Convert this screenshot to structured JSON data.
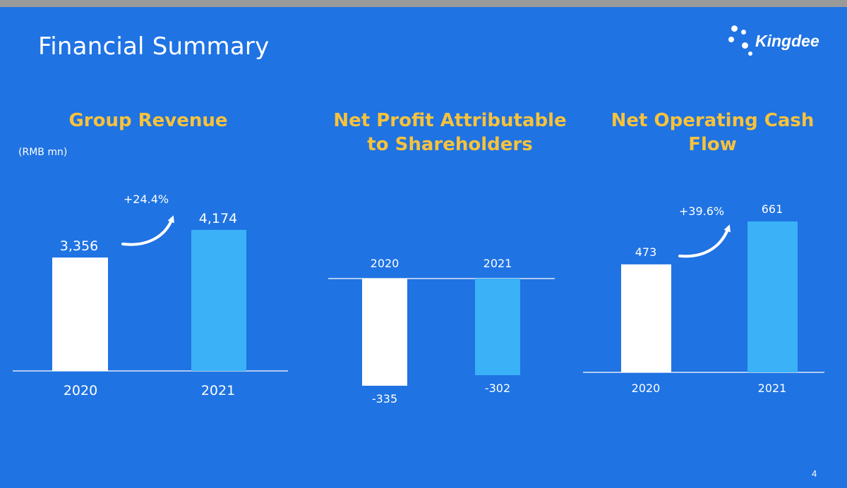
{
  "slide": {
    "title": "Financial Summary",
    "logo_text": "Kingdee",
    "page_number": "4",
    "colors": {
      "background": "#1f73e3",
      "title_accent": "#f7c23c",
      "bar_2020": "#ffffff",
      "bar_2021": "#3bb1f7"
    }
  },
  "chart_data": [
    {
      "type": "bar",
      "title": "Group Revenue",
      "unit_label": "(RMB mn)",
      "categories": [
        "2020",
        "2021"
      ],
      "values": [
        3356,
        4174
      ],
      "value_labels": [
        "3,356",
        "4,174"
      ],
      "growth_label": "+24.4%"
    },
    {
      "type": "bar",
      "title": "Net Profit Attributable to Shareholders",
      "categories": [
        "2020",
        "2021"
      ],
      "values": [
        -335,
        -302
      ],
      "value_labels": [
        "-335",
        "-302"
      ]
    },
    {
      "type": "bar",
      "title": "Net Operating Cash Flow",
      "categories": [
        "2020",
        "2021"
      ],
      "values": [
        473,
        661
      ],
      "value_labels": [
        "473",
        "661"
      ],
      "growth_label": "+39.6%"
    }
  ]
}
